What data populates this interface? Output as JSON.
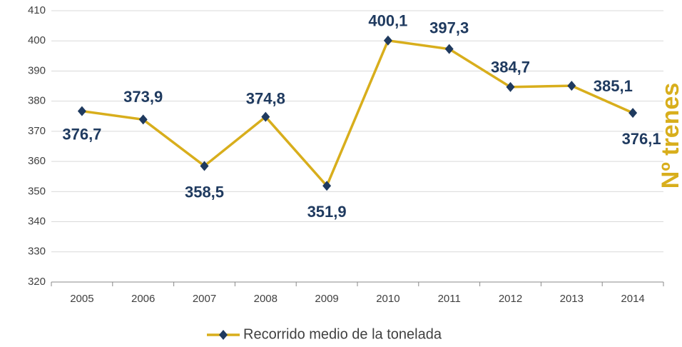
{
  "chart_data": {
    "type": "line",
    "categories": [
      "2005",
      "2006",
      "2007",
      "2008",
      "2009",
      "2010",
      "2011",
      "2012",
      "2013",
      "2014"
    ],
    "series": [
      {
        "name": "Recorrido medio de la tonelada",
        "color": "#d8ae1c",
        "marker_color": "#1f3a5f",
        "values": [
          376.7,
          373.9,
          358.5,
          374.8,
          351.9,
          400.1,
          397.3,
          384.7,
          385.1,
          376.1
        ],
        "value_labels": [
          "376,7",
          "373,9",
          "358,5",
          "374,8",
          "351,9",
          "400,1",
          "397,3",
          "384,7",
          "385,1",
          "376,1"
        ]
      }
    ],
    "ylim": [
      320,
      410
    ],
    "yticks": [
      320,
      330,
      340,
      350,
      360,
      370,
      380,
      390,
      400,
      410
    ],
    "grid": true,
    "legend": "bottom",
    "y2_label": "Nº trenes"
  }
}
